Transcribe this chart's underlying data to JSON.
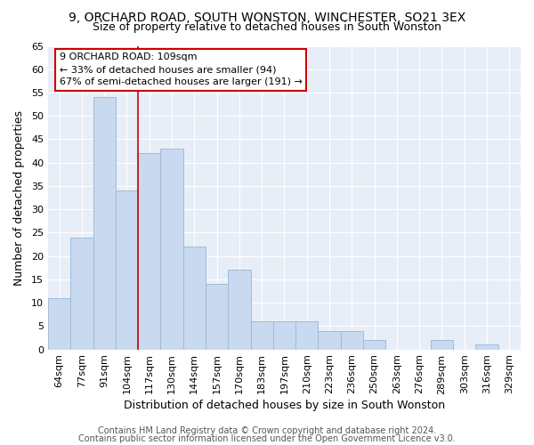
{
  "title1": "9, ORCHARD ROAD, SOUTH WONSTON, WINCHESTER, SO21 3EX",
  "title2": "Size of property relative to detached houses in South Wonston",
  "xlabel": "Distribution of detached houses by size in South Wonston",
  "ylabel": "Number of detached properties",
  "categories": [
    "64sqm",
    "77sqm",
    "91sqm",
    "104sqm",
    "117sqm",
    "130sqm",
    "144sqm",
    "157sqm",
    "170sqm",
    "183sqm",
    "197sqm",
    "210sqm",
    "223sqm",
    "236sqm",
    "250sqm",
    "263sqm",
    "276sqm",
    "289sqm",
    "303sqm",
    "316sqm",
    "329sqm"
  ],
  "values": [
    11,
    24,
    54,
    34,
    42,
    43,
    22,
    14,
    17,
    6,
    6,
    6,
    4,
    4,
    2,
    0,
    0,
    2,
    0,
    1,
    0
  ],
  "bar_color": "#c8d9f0",
  "bar_edge_color": "#a0bcd8",
  "ylim": [
    0,
    65
  ],
  "yticks": [
    0,
    5,
    10,
    15,
    20,
    25,
    30,
    35,
    40,
    45,
    50,
    55,
    60,
    65
  ],
  "vline_x": 3.5,
  "vline_color": "#cc0000",
  "annotation_line1": "9 ORCHARD ROAD: 109sqm",
  "annotation_line2": "← 33% of detached houses are smaller (94)",
  "annotation_line3": "67% of semi-detached houses are larger (191) →",
  "footer1": "Contains HM Land Registry data © Crown copyright and database right 2024.",
  "footer2": "Contains public sector information licensed under the Open Government Licence v3.0.",
  "fig_bg_color": "#ffffff",
  "plot_bg_color": "#e8eef8",
  "title1_fontsize": 10,
  "title2_fontsize": 9,
  "xlabel_fontsize": 9,
  "ylabel_fontsize": 9,
  "tick_fontsize": 8,
  "footer_fontsize": 7,
  "annotation_fontsize": 8
}
